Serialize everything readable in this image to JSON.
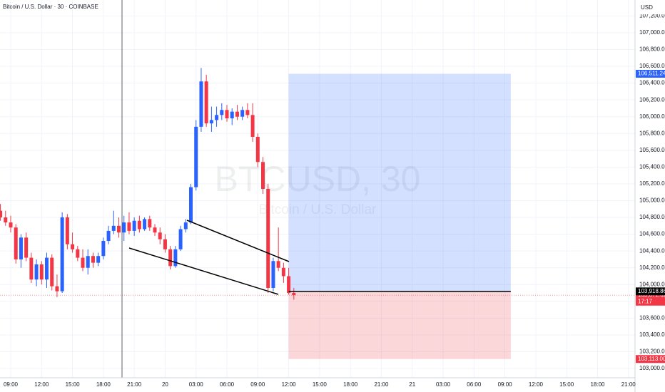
{
  "chart_data": {
    "type": "candlestick",
    "title": "Bitcoin / U.S. Dollar · 30 · COINBASE",
    "watermark": "BTCUSD, 30",
    "watermark_subtitle": "Bitcoin / U.S. Dollar",
    "currency": "USD",
    "up_color": "#2962ff",
    "down_color": "#f23645",
    "grid": true,
    "x": [
      8.0,
      8.5,
      9.0,
      9.5,
      10.0,
      10.5,
      11.0,
      11.5,
      12.0,
      12.5,
      13.0,
      13.5,
      14.0,
      14.5,
      15.0,
      15.5,
      16.0,
      16.5,
      17.0,
      17.5,
      18.0,
      18.5,
      19.0,
      19.5,
      20.0,
      20.5,
      21.0,
      21.5,
      22.0,
      22.5,
      23.0,
      23.5,
      24.0,
      24.5,
      25.0,
      25.5,
      26.0,
      26.5,
      27.0,
      27.5,
      28.0,
      28.5,
      29.0,
      29.5,
      30.0,
      30.5,
      31.0,
      31.5,
      32.0,
      32.5,
      33.0,
      33.5,
      34.0,
      34.5,
      35.0,
      35.5,
      36.0,
      36.5
    ],
    "open": [
      104880,
      104800,
      104740,
      104680,
      104300,
      104560,
      104320,
      104060,
      104240,
      104060,
      104320,
      103980,
      103920,
      104800,
      104480,
      104420,
      104320,
      104200,
      104340,
      104260,
      104340,
      104520,
      104640,
      104700,
      104620,
      104740,
      104640,
      104760,
      104660,
      104780,
      104680,
      104620,
      104540,
      104420,
      104220,
      104420,
      104660,
      104740,
      105160,
      105880,
      106420,
      105920,
      105960,
      106020,
      106080,
      105980,
      106060,
      106000,
      106080,
      106020,
      105760,
      105460,
      105140,
      103960,
      104280,
      104200,
      104100,
      103900
    ],
    "high": [
      104960,
      104880,
      104820,
      104720,
      104600,
      104620,
      104380,
      104300,
      104280,
      104380,
      104360,
      104120,
      104860,
      104840,
      104620,
      104460,
      104420,
      104420,
      104380,
      104380,
      104560,
      104700,
      104880,
      104800,
      104820,
      104860,
      104800,
      104820,
      104800,
      104820,
      104720,
      104680,
      104600,
      104460,
      104460,
      104700,
      104780,
      105200,
      105960,
      106580,
      106500,
      106120,
      106120,
      106160,
      106140,
      106100,
      106140,
      106120,
      106160,
      106160,
      105800,
      105520,
      105200,
      104320,
      104680,
      104260,
      104200,
      103960
    ],
    "low": [
      104760,
      104700,
      104620,
      104250,
      104200,
      104280,
      104020,
      103980,
      104000,
      103960,
      103930,
      103850,
      103900,
      104420,
      104380,
      104280,
      104160,
      104120,
      104200,
      104220,
      104300,
      104480,
      104600,
      104560,
      104520,
      104600,
      104580,
      104620,
      104640,
      104640,
      104580,
      104480,
      104380,
      104180,
      104200,
      104400,
      104620,
      104720,
      105120,
      105820,
      105880,
      105820,
      105880,
      105960,
      105940,
      105900,
      105960,
      105960,
      105980,
      105700,
      105400,
      105080,
      103900,
      103920,
      104160,
      104020,
      103880,
      103820
    ],
    "close": [
      104800,
      104740,
      104680,
      104300,
      104560,
      104320,
      104060,
      104240,
      104060,
      104320,
      103980,
      103920,
      104800,
      104480,
      104420,
      104320,
      104200,
      104340,
      104260,
      104340,
      104520,
      104640,
      104700,
      104620,
      104740,
      104640,
      104760,
      104660,
      104780,
      104680,
      104620,
      104540,
      104420,
      104220,
      104420,
      104660,
      104740,
      105160,
      105880,
      106420,
      105920,
      105960,
      106020,
      106080,
      105980,
      106060,
      106000,
      106080,
      106020,
      105760,
      105460,
      105140,
      103960,
      104280,
      104200,
      104100,
      103900,
      103873
    ],
    "xlim": [
      7.96,
      69.64
    ],
    "xticks": [
      {
        "value": 9,
        "label": "09:00"
      },
      {
        "value": 12,
        "label": "12:00"
      },
      {
        "value": 15,
        "label": "15:00"
      },
      {
        "value": 18,
        "label": "18:00"
      },
      {
        "value": 21,
        "label": "21:00"
      },
      {
        "value": 24,
        "label": "20"
      },
      {
        "value": 27,
        "label": "03:00"
      },
      {
        "value": 30,
        "label": "06:00"
      },
      {
        "value": 33,
        "label": "09:00"
      },
      {
        "value": 36,
        "label": "12:00"
      },
      {
        "value": 39,
        "label": "15:00"
      },
      {
        "value": 42,
        "label": "18:00"
      },
      {
        "value": 45,
        "label": "21:00"
      },
      {
        "value": 48,
        "label": "21"
      },
      {
        "value": 51,
        "label": "03:00"
      },
      {
        "value": 54,
        "label": "06:00"
      },
      {
        "value": 57,
        "label": "09:00"
      },
      {
        "value": 60,
        "label": "12:00"
      },
      {
        "value": 63,
        "label": "15:00"
      },
      {
        "value": 66,
        "label": "18:00"
      },
      {
        "value": 69,
        "label": "21:00"
      }
    ],
    "ylim": [
      102890,
      107390
    ],
    "yticks": [
      {
        "value": 103000,
        "label": "103,000.00"
      },
      {
        "value": 103200,
        "label": "103,200.00"
      },
      {
        "value": 103400,
        "label": "103,400.00"
      },
      {
        "value": 103600,
        "label": "103,600.00"
      },
      {
        "value": 103800,
        "label": "103,800.00"
      },
      {
        "value": 104000,
        "label": "104,000.00"
      },
      {
        "value": 104200,
        "label": "104,200.00"
      },
      {
        "value": 104400,
        "label": "104,400.00"
      },
      {
        "value": 104600,
        "label": "104,600.00"
      },
      {
        "value": 104800,
        "label": "104,800.00"
      },
      {
        "value": 105000,
        "label": "105,000.00"
      },
      {
        "value": 105200,
        "label": "105,200.00"
      },
      {
        "value": 105400,
        "label": "105,400.00"
      },
      {
        "value": 105600,
        "label": "105,600.00"
      },
      {
        "value": 105800,
        "label": "105,800.00"
      },
      {
        "value": 106000,
        "label": "106,000.00"
      },
      {
        "value": 106200,
        "label": "106,200.00"
      },
      {
        "value": 106400,
        "label": "106,400.00"
      },
      {
        "value": 106600,
        "label": "106,600.00"
      },
      {
        "value": 106800,
        "label": "106,800.00"
      },
      {
        "value": 107000,
        "label": "107,000.00"
      },
      {
        "value": 107200,
        "label": "107,200.00"
      }
    ],
    "position": {
      "start": 36.0,
      "end": 57.57,
      "entry": 103918.86,
      "entry_label": "103,918.86",
      "target": 106511.24,
      "target_label": "106,511.24",
      "stop": 103113.0,
      "stop_label": "103,113.00"
    },
    "last_price": 103872.62,
    "last_price_label": "103,872.62",
    "countdown": "17:17"
  }
}
